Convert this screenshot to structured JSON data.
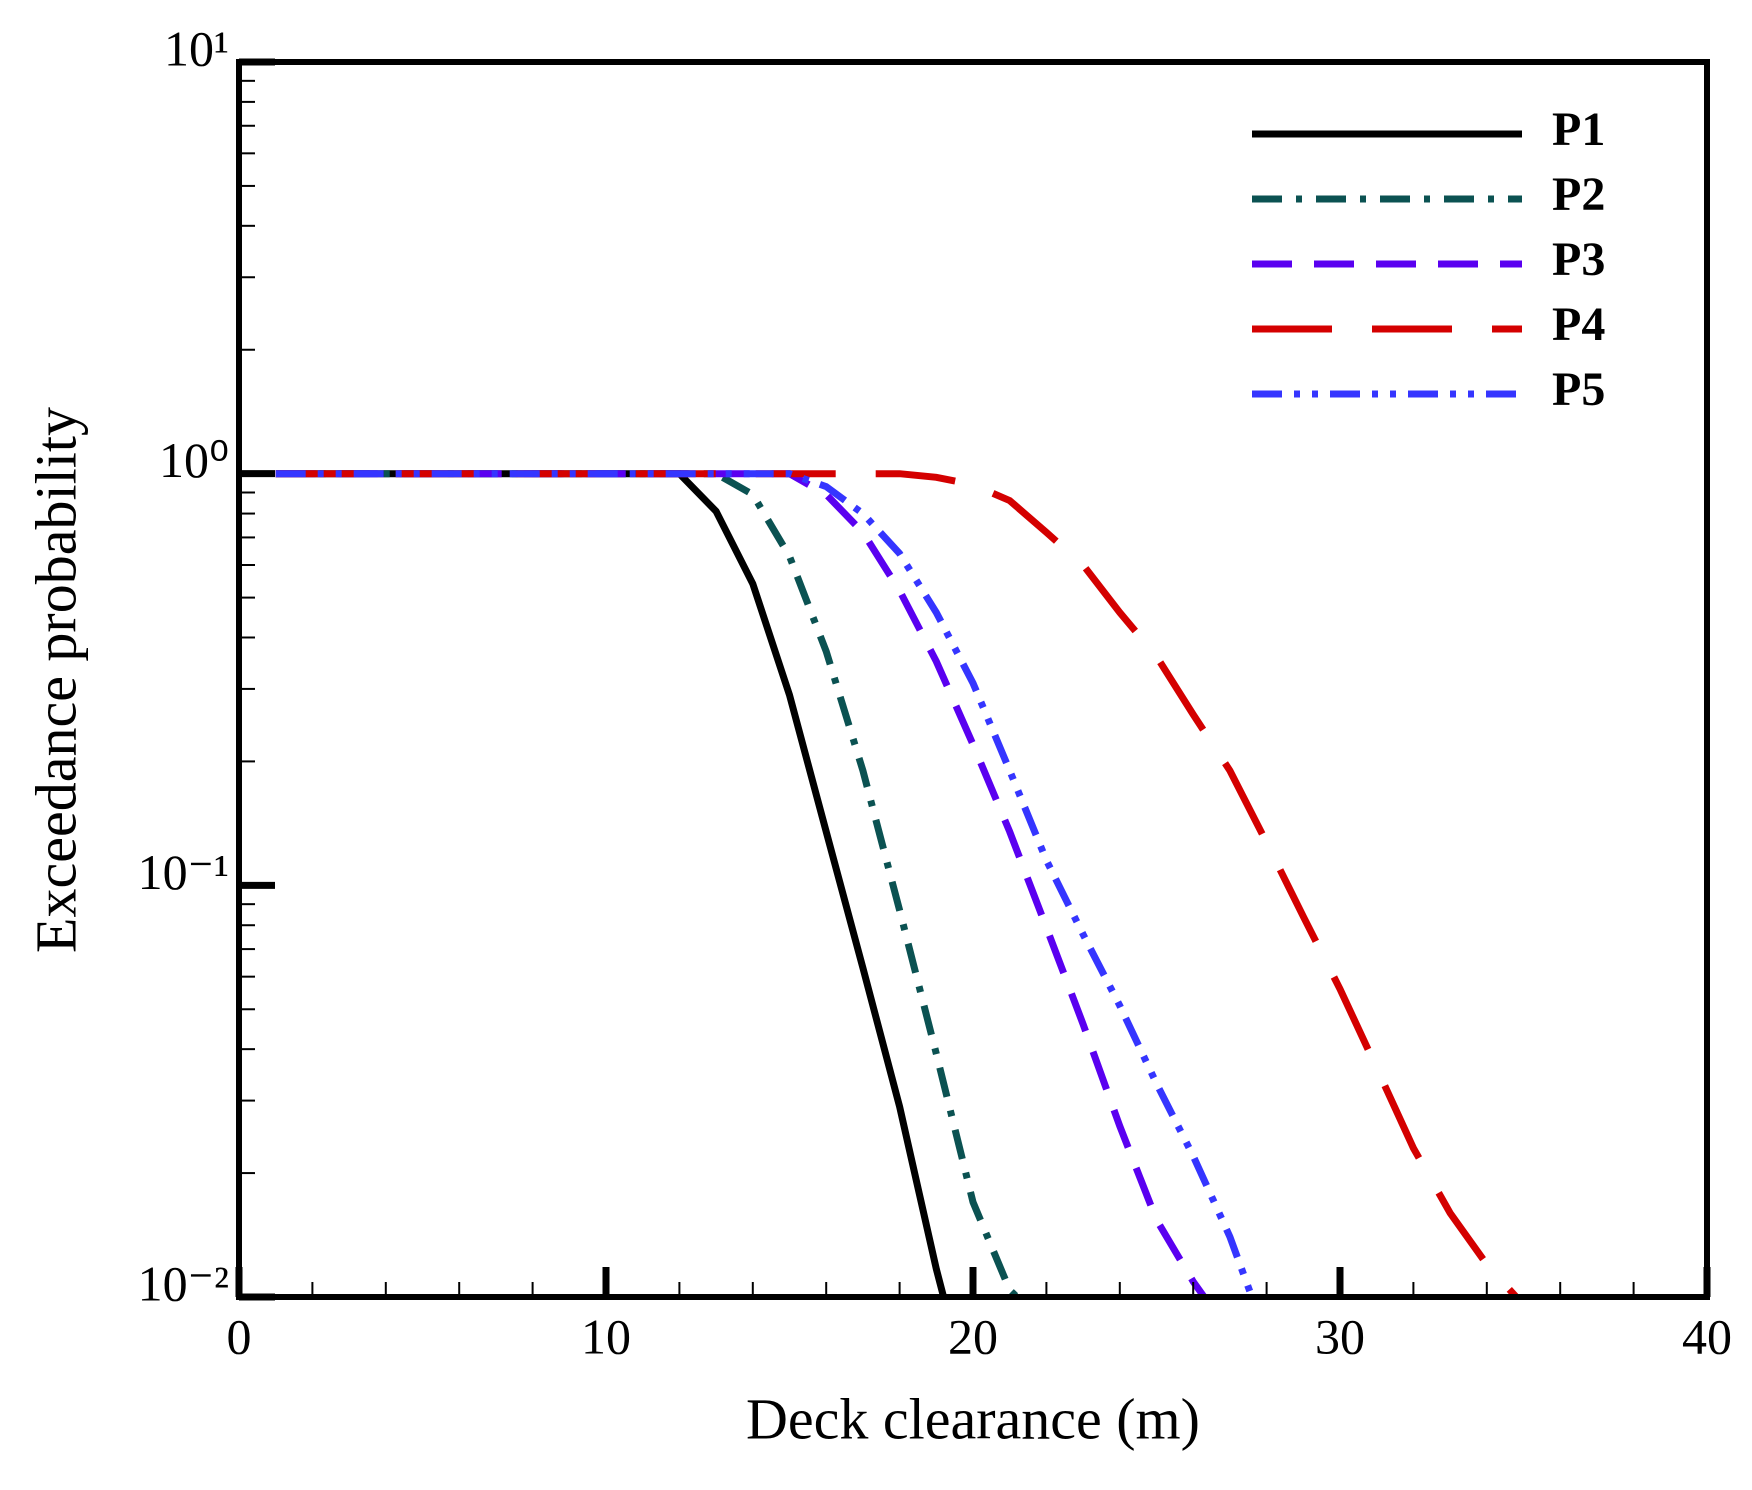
{
  "chart_data": {
    "type": "line",
    "x_label": "Deck clearance (m)",
    "y_label": "Exceedance probability",
    "y_log": true,
    "legend": "top-right",
    "xlim": [
      0,
      40
    ],
    "xticks": [
      0,
      10,
      20,
      30,
      40
    ],
    "x_minor_ticks": [
      2,
      4,
      6,
      8,
      12,
      14,
      16,
      18,
      22,
      24,
      26,
      28,
      32,
      34,
      36,
      38
    ],
    "ylim": [
      0.01,
      10
    ],
    "yticks": [
      {
        "value": 0.01,
        "label": "10⁻²"
      },
      {
        "value": 0.1,
        "label": "10⁻¹"
      },
      {
        "value": 1,
        "label": "10⁰"
      },
      {
        "value": 10,
        "label": "10¹"
      }
    ],
    "y_minor_ticks": [
      0.02,
      0.03,
      0.04,
      0.05,
      0.06,
      0.07,
      0.08,
      0.09,
      0.2,
      0.3,
      0.4,
      0.5,
      0.6,
      0.7,
      0.8,
      0.9,
      2,
      3,
      4,
      5,
      6,
      7,
      8,
      9
    ],
    "series": [
      {
        "name": "P1",
        "color": "#000000",
        "dash": "solid",
        "x": [
          1,
          12,
          13,
          14,
          15,
          16,
          17,
          18,
          19,
          19.2
        ],
        "values": [
          1,
          1,
          0.81,
          0.54,
          0.29,
          0.135,
          0.063,
          0.029,
          0.0117,
          0.01
        ]
      },
      {
        "name": "P2",
        "color": "#0b5252",
        "dash": "dashdot",
        "x": [
          1,
          13,
          14,
          15,
          16,
          17,
          18,
          19,
          20,
          21,
          21.2
        ],
        "values": [
          1,
          1,
          0.89,
          0.63,
          0.37,
          0.19,
          0.087,
          0.039,
          0.017,
          0.0104,
          0.01
        ]
      },
      {
        "name": "P3",
        "color": "#5a00f0",
        "dash": "dash",
        "x": [
          1,
          15,
          16,
          17,
          18,
          19,
          20,
          21,
          22,
          23,
          24,
          25,
          26,
          26.3
        ],
        "values": [
          1,
          1,
          0.89,
          0.72,
          0.52,
          0.35,
          0.22,
          0.135,
          0.079,
          0.046,
          0.026,
          0.0154,
          0.0109,
          0.01
        ]
      },
      {
        "name": "P4",
        "color": "#d40000",
        "dash": "longdash",
        "x": [
          1,
          18,
          19,
          20,
          21,
          22,
          23,
          24,
          25,
          26,
          27,
          28,
          29,
          30,
          31,
          32,
          33,
          34,
          34.8
        ],
        "values": [
          1,
          1,
          0.98,
          0.94,
          0.86,
          0.72,
          0.6,
          0.46,
          0.36,
          0.26,
          0.19,
          0.127,
          0.084,
          0.056,
          0.036,
          0.023,
          0.016,
          0.012,
          0.01
        ]
      },
      {
        "name": "P5",
        "color": "#3535ff",
        "dash": "dashdotdot",
        "x": [
          1,
          15,
          16,
          17,
          18,
          19,
          20,
          21,
          22,
          23,
          24,
          25,
          26,
          27,
          27.6
        ],
        "values": [
          1,
          1,
          0.93,
          0.8,
          0.64,
          0.46,
          0.31,
          0.19,
          0.115,
          0.076,
          0.051,
          0.033,
          0.022,
          0.014,
          0.01
        ]
      }
    ]
  }
}
